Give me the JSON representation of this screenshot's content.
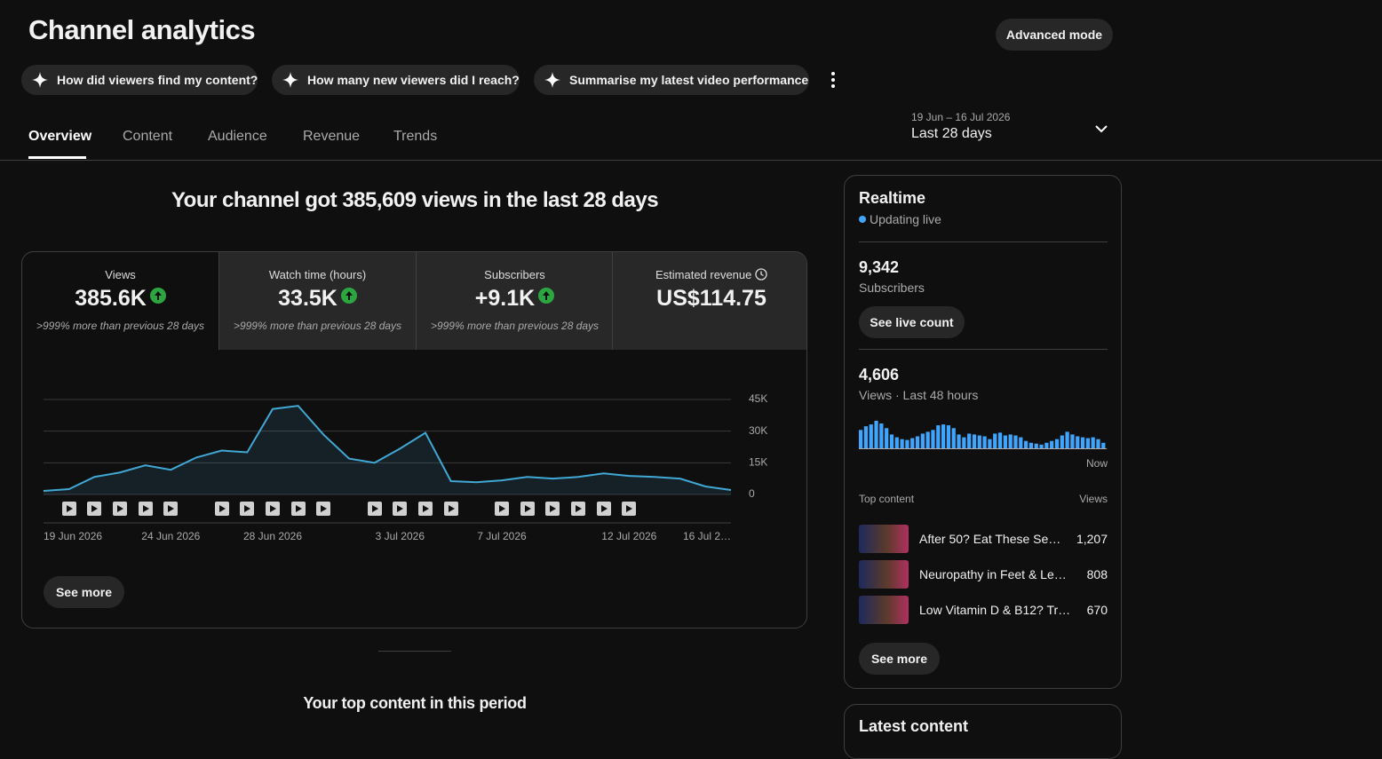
{
  "header": {
    "title": "Channel analytics",
    "advanced_mode": "Advanced mode"
  },
  "chips": [
    "How did viewers find my content?",
    "How many new viewers did I reach?",
    "Summarise my latest video performance"
  ],
  "tabs": [
    "Overview",
    "Content",
    "Audience",
    "Revenue",
    "Trends"
  ],
  "date_range": {
    "dates": "19 Jun – 16 Jul 2026",
    "period": "Last 28 days"
  },
  "headline": "Your channel got 385,609 views in the last 28 days",
  "kpis": [
    {
      "label": "Views",
      "value": "385.6K",
      "change": ">999% more than previous 28 days"
    },
    {
      "label": "Watch time (hours)",
      "value": "33.5K",
      "change": ">999% more than previous 28 days"
    },
    {
      "label": "Subscribers",
      "value": "+9.1K",
      "change": ">999% more than previous 28 days"
    },
    {
      "label": "Estimated revenue",
      "value": "US$114.75"
    }
  ],
  "chart_data": [
    {
      "type": "line",
      "categories": [
        "19 Jun 2026",
        null,
        null,
        null,
        null,
        "24 Jun 2026",
        null,
        null,
        null,
        "28 Jun 2026",
        null,
        null,
        null,
        null,
        "3 Jul 2026",
        null,
        null,
        null,
        "7 Jul 2026",
        null,
        null,
        null,
        null,
        "12 Jul 2026",
        null,
        null,
        null,
        "16 Jul 2…"
      ],
      "values": [
        1700,
        2500,
        8300,
        10400,
        13800,
        11700,
        17500,
        20800,
        20000,
        40500,
        42000,
        28300,
        17000,
        15000,
        21700,
        29200,
        6300,
        5800,
        6700,
        8300,
        7500,
        8300,
        10000,
        8800,
        8300,
        7500,
        3800,
        2100
      ],
      "color": "#41a8d6",
      "ylim": [
        0,
        45000
      ],
      "yticks": [
        {
          "value": 0,
          "label": "0"
        },
        {
          "value": 15000,
          "label": "15K"
        },
        {
          "value": 30000,
          "label": "30K"
        },
        {
          "value": 45000,
          "label": "45K"
        }
      ],
      "grid": true
    },
    {
      "type": "bar",
      "values": [
        130,
        156,
        169,
        195,
        176,
        143,
        98,
        78,
        65,
        59,
        72,
        85,
        104,
        117,
        130,
        163,
        169,
        163,
        143,
        98,
        78,
        104,
        98,
        91,
        85,
        65,
        104,
        111,
        91,
        98,
        91,
        78,
        52,
        39,
        33,
        26,
        39,
        52,
        65,
        91,
        117,
        98,
        85,
        78,
        72,
        78,
        65,
        39
      ],
      "color": "#3ea6ff"
    }
  ],
  "see_more": "See more",
  "top_content_heading": "Your top content in this period",
  "realtime": {
    "title": "Realtime",
    "status": "Updating live",
    "subscribers": "9,342",
    "subscribers_label": "Subscribers",
    "see_live_count": "See live count",
    "views": "4,606",
    "views_label": "Views · Last 48 hours",
    "now": "Now",
    "top_content_label": "Top content",
    "views_header": "Views",
    "items": [
      {
        "title": "After 50? Eat These Se…",
        "views": "1,207"
      },
      {
        "title": "Neuropathy in Feet & Le…",
        "views": "808"
      },
      {
        "title": "Low Vitamin D & B12? Tr…",
        "views": "670"
      }
    ],
    "see_more": "See more"
  },
  "latest_content": {
    "title": "Latest content"
  }
}
